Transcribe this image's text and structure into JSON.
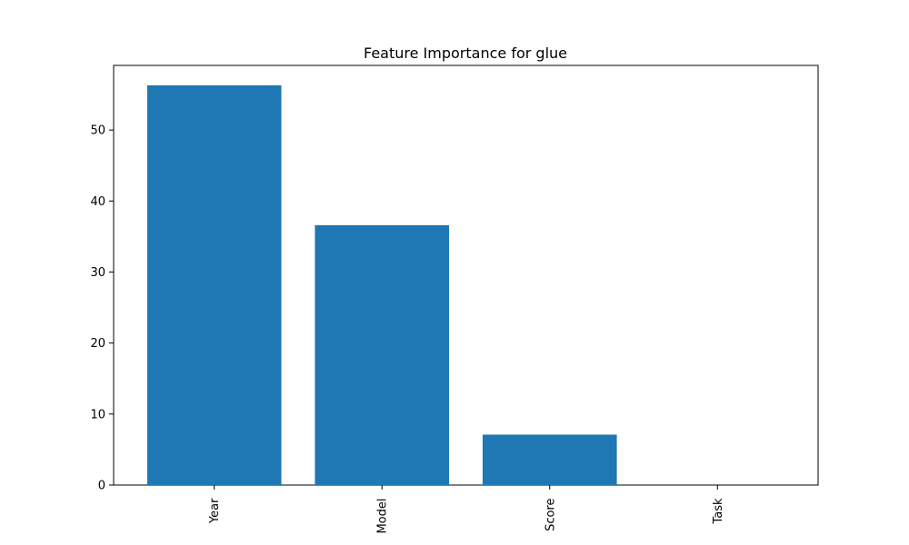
{
  "chart_data": {
    "type": "bar",
    "title": "Feature Importance for glue",
    "xlabel": "",
    "ylabel": "",
    "categories": [
      "Year",
      "Model",
      "Score",
      "Task"
    ],
    "values": [
      56.3,
      36.6,
      7.1,
      0.0
    ],
    "ylim": [
      0,
      59.1
    ],
    "yticks": [
      0,
      10,
      20,
      30,
      40,
      50
    ],
    "grid": false,
    "legend": "none",
    "bar_color": "#1f77b4",
    "xtick_rotation": "vertical"
  }
}
